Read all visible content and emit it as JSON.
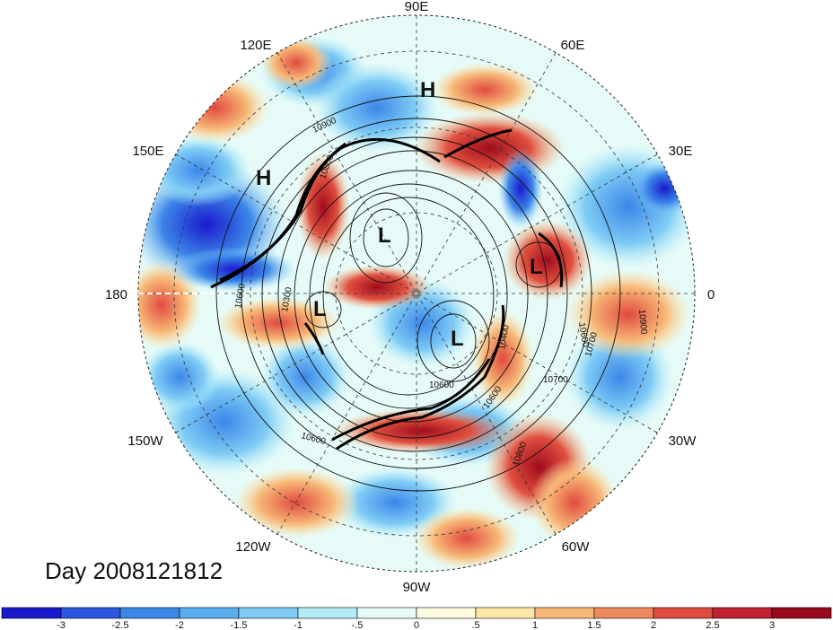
{
  "title": "Day 2008121812",
  "map": {
    "projection": "north-polar-stereographic",
    "lon_labels": [
      "90E",
      "60E",
      "30E",
      "0",
      "30W",
      "60W",
      "90W",
      "120W",
      "150W",
      "180",
      "150E",
      "120E"
    ],
    "contour_labels": [
      "10900",
      "10800",
      "10600",
      "10700",
      "10400",
      "10600",
      "10600",
      "10700",
      "10800",
      "10900",
      "10600",
      "10300",
      "10600"
    ],
    "pressure_centers": [
      {
        "type": "H",
        "label": "H"
      },
      {
        "type": "H",
        "label": "H"
      },
      {
        "type": "L",
        "label": "L"
      },
      {
        "type": "L",
        "label": "L"
      },
      {
        "type": "L",
        "label": "L"
      },
      {
        "type": "L",
        "label": "L"
      }
    ]
  },
  "colorbar": {
    "colors": [
      "#1a1acc",
      "#2b57e0",
      "#3c86e8",
      "#5aaef0",
      "#7ecbf5",
      "#b3ecf7",
      "#e6fbf8",
      "#fffbe0",
      "#fde6a8",
      "#f7b877",
      "#ef8a5f",
      "#e04a3f",
      "#c02030",
      "#9a0a1e"
    ],
    "tick_labels": [
      "-3",
      "-2.5",
      "-2",
      "-1.5",
      "-1",
      "-.5",
      "0",
      ".5",
      "1",
      "1.5",
      "2",
      "2.5",
      "3"
    ]
  }
}
